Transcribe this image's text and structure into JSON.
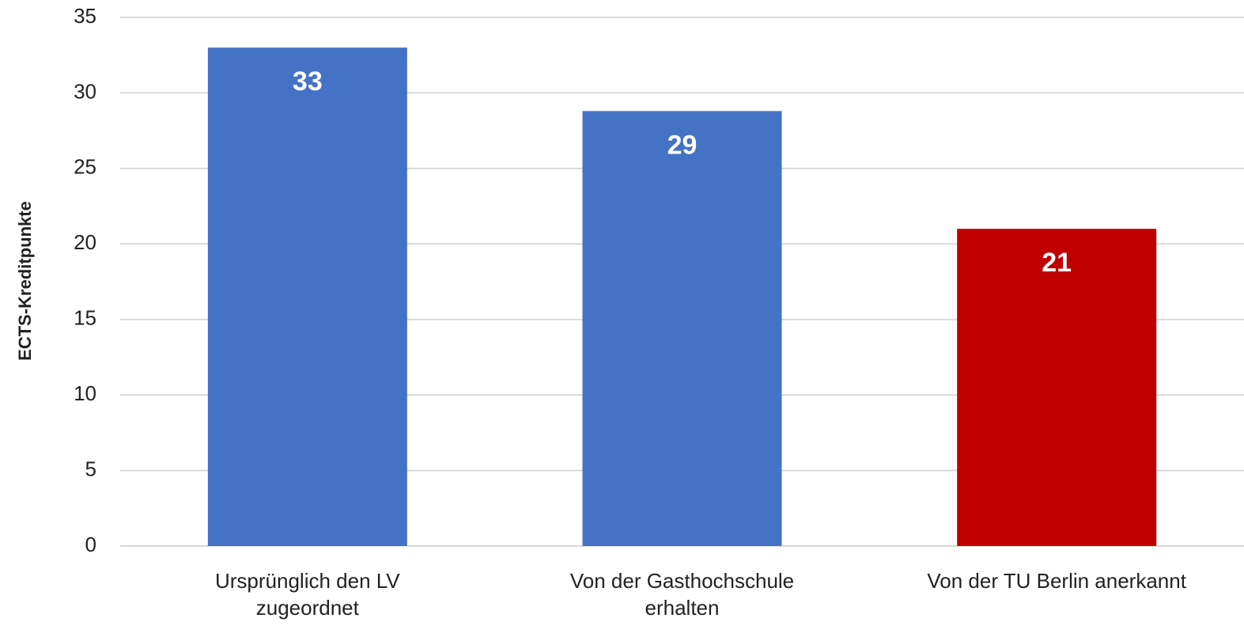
{
  "chart_data": {
    "type": "bar",
    "y_label": "ECTS-Kreditpunkte",
    "categories": [
      "Ursprünglich den LV zugeordnet",
      "Von der Gasthochschule erhalten",
      "Von der TU Berlin anerkannt"
    ],
    "values": [
      33,
      28.8,
      21
    ],
    "value_labels": [
      "33",
      "29",
      "21"
    ],
    "colors": [
      "#4472c4",
      "#4472c4",
      "#c00000"
    ],
    "ylim": [
      0,
      35
    ],
    "yticks": [
      0,
      5,
      10,
      15,
      20,
      25,
      30,
      35
    ],
    "grid": true
  }
}
